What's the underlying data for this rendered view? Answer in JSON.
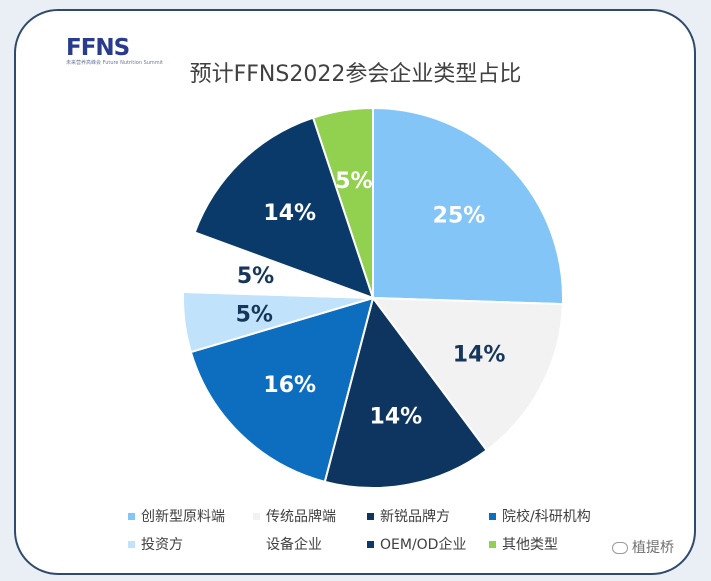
{
  "logo": {
    "text": "FFNS",
    "sub": "未来营养高峰会 Future Nutrition Summit"
  },
  "chart_data": {
    "type": "pie",
    "title": "预计FFNS2022参会企业类型占比",
    "slices": [
      {
        "label": "创新型原料端",
        "value": 25,
        "display": "25%",
        "color": "#84c5f7",
        "label_color": "#ffffff"
      },
      {
        "label": "传统品牌端",
        "value": 14,
        "display": "14%",
        "color": "#f2f2f2",
        "label_color": "#16365c"
      },
      {
        "label": "新锐品牌方",
        "value": 14,
        "display": "14%",
        "color": "#0e3560",
        "label_color": "#ffffff"
      },
      {
        "label": "院校/科研机构",
        "value": 16,
        "display": "16%",
        "color": "#0d6ec0",
        "label_color": "#ffffff"
      },
      {
        "label": "投资方",
        "value": 5,
        "display": "5%",
        "color": "#c0e2fb",
        "label_color": "#16365c"
      },
      {
        "label": "设备企业",
        "value": 5,
        "display": "5%",
        "color": "#ffffff",
        "label_color": "#16365c"
      },
      {
        "label": "OEM/OD企业",
        "value": 14,
        "display": "14%",
        "color": "#0a3a6a",
        "label_color": "#ffffff"
      },
      {
        "label": "其他类型",
        "value": 5,
        "display": "5%",
        "color": "#92d050",
        "label_color": "#ffffff"
      }
    ],
    "legend_position": "bottom"
  },
  "watermark": "植提桥"
}
